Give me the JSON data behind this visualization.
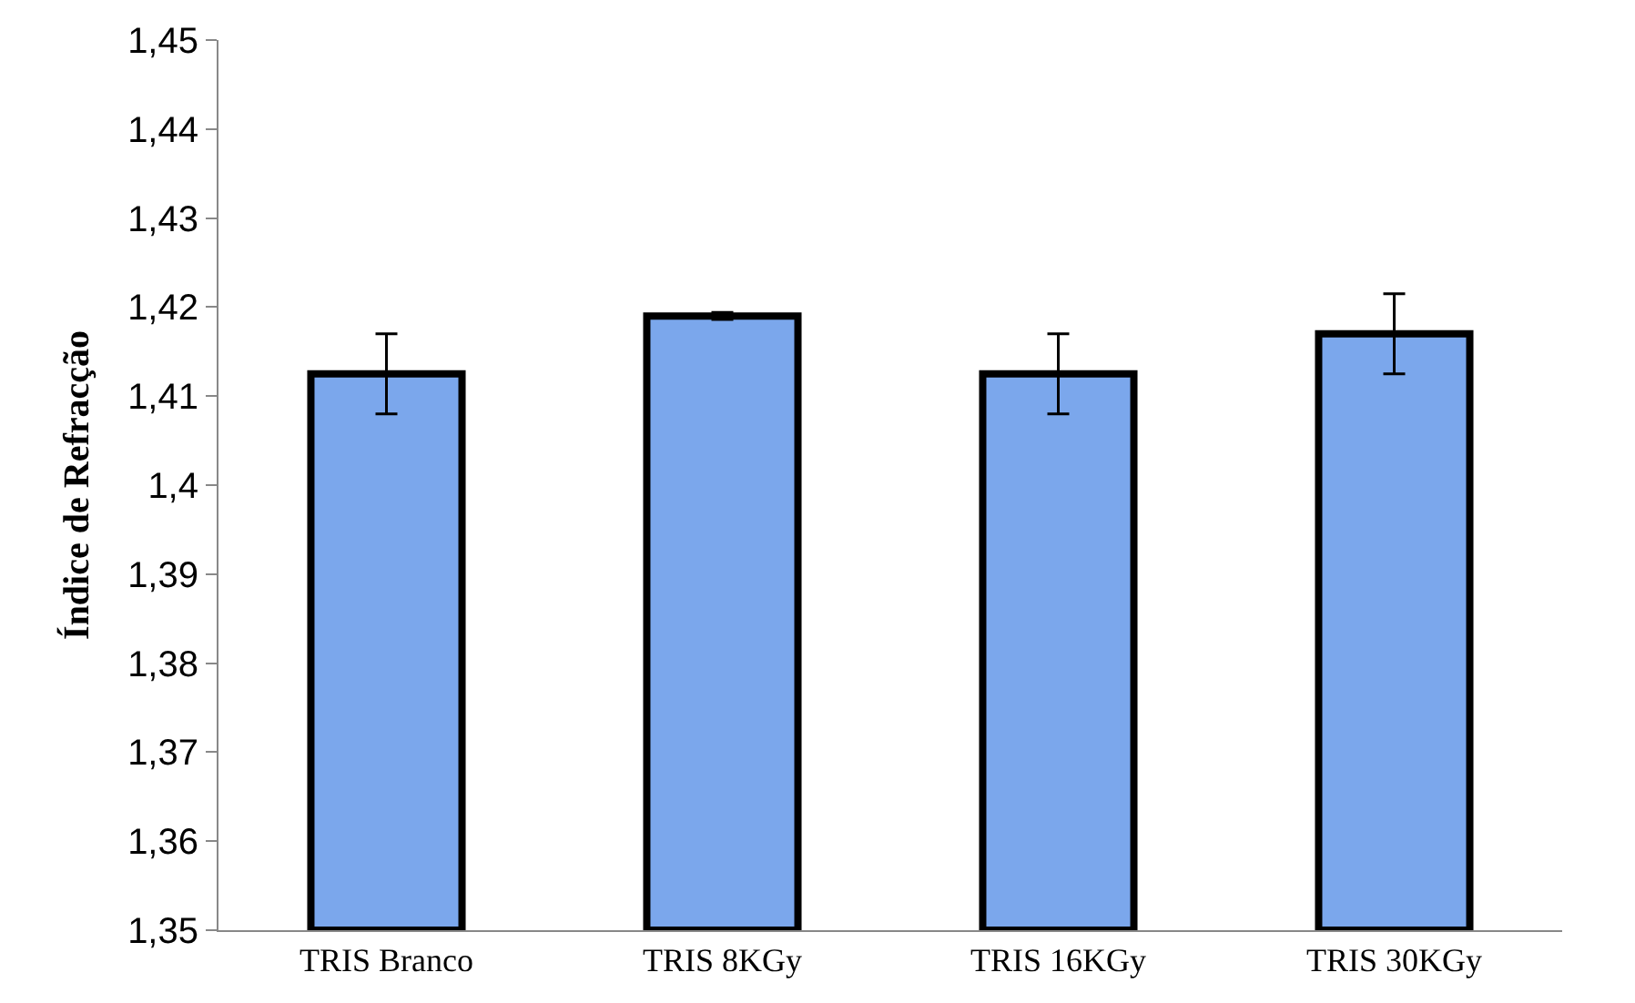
{
  "chart_data": {
    "type": "bar",
    "ylabel": "Índice de Refracção",
    "categories": [
      "TRIS Branco",
      "TRIS 8KGy",
      "TRIS 16KGy",
      "TRIS 30KGy"
    ],
    "values": [
      1.4125,
      1.419,
      1.4125,
      1.417
    ],
    "errors": [
      0.0045,
      0.0004,
      0.0045,
      0.0045
    ],
    "color": "#7ba7ec",
    "ylim": [
      1.35,
      1.45
    ],
    "yticks": [
      {
        "value": 1.35,
        "label": "1,35"
      },
      {
        "value": 1.36,
        "label": "1,36"
      },
      {
        "value": 1.37,
        "label": "1,37"
      },
      {
        "value": 1.38,
        "label": "1,38"
      },
      {
        "value": 1.39,
        "label": "1,39"
      },
      {
        "value": 1.4,
        "label": "1,4"
      },
      {
        "value": 1.41,
        "label": "1,41"
      },
      {
        "value": 1.42,
        "label": "1,42"
      },
      {
        "value": 1.43,
        "label": "1,43"
      },
      {
        "value": 1.44,
        "label": "1,44"
      },
      {
        "value": 1.45,
        "label": "1,45"
      }
    ],
    "grid": false
  }
}
